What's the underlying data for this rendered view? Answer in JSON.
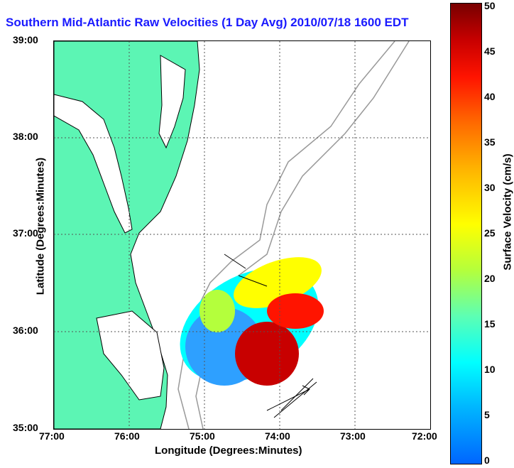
{
  "title": "Southern Mid-Atlantic Raw Velocities (1 Day Avg) 2010/07/18 1600 EDT",
  "axes": {
    "xlabel": "Longitude (Degrees:Minutes)",
    "ylabel": "Latitude (Degrees:Minutes)",
    "xticks": [
      "77:00",
      "76:00",
      "75:00",
      "74:00",
      "73:00",
      "72:00"
    ],
    "yticks": [
      "39:00",
      "38:00",
      "37:00",
      "36:00",
      "35:00"
    ]
  },
  "colorbar": {
    "label": "Surface Velocity (cm/s)",
    "ticks": [
      "0",
      "5",
      "10",
      "15",
      "20",
      "25",
      "30",
      "35",
      "40",
      "45",
      "50"
    ],
    "min": 0,
    "max": 50
  },
  "colors": {
    "land": "#5cf5b4",
    "title": "#1a1aff",
    "grid": "#555555",
    "bathymetry": "#999999"
  }
}
